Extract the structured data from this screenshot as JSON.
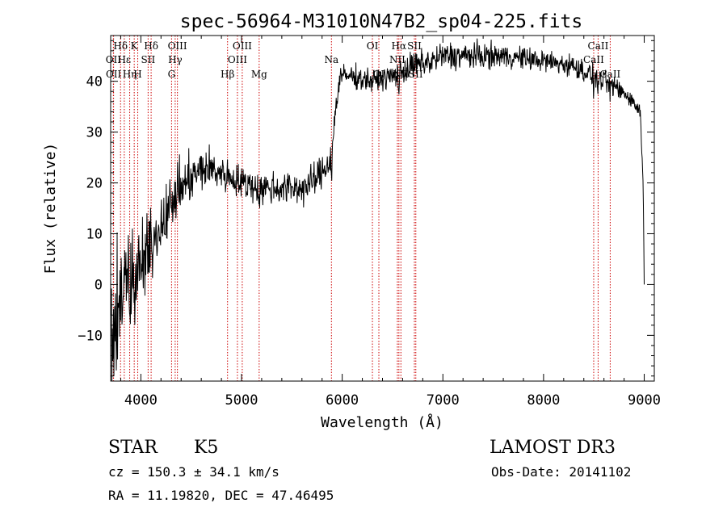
{
  "chart_data": {
    "type": "line",
    "title": "spec-56964-M31010N47B2_sp04-225.fits",
    "xlabel": "Wavelength (Å)",
    "ylabel": "Flux (relative)",
    "xlim": [
      3700,
      9100
    ],
    "ylim": [
      -19,
      49
    ],
    "xticks": [
      {
        "label": "4000",
        "value": 4000
      },
      {
        "label": "5000",
        "value": 5000
      },
      {
        "label": "6000",
        "value": 6000
      },
      {
        "label": "7000",
        "value": 7000
      },
      {
        "label": "8000",
        "value": 8000
      },
      {
        "label": "9000",
        "value": 9000
      }
    ],
    "yticks": [
      {
        "label": "−10",
        "value": -10
      },
      {
        "label": "0",
        "value": 0
      },
      {
        "label": "10",
        "value": 10
      },
      {
        "label": "20",
        "value": 20
      },
      {
        "label": "30",
        "value": 30
      },
      {
        "label": "40",
        "value": 40
      }
    ],
    "grid": false,
    "line_color": "#000000",
    "marker_line_color": "#cc0000",
    "lines": [
      {
        "label": "Hδ",
        "wavelength": 3798,
        "row": 0
      },
      {
        "label": "OII",
        "wavelength": 3727,
        "row": 1
      },
      {
        "label": "OII",
        "wavelength": 3729,
        "row": 2
      },
      {
        "label": "Hε",
        "wavelength": 3835,
        "row": 1
      },
      {
        "label": "Hη",
        "wavelength": 3889,
        "row": 2
      },
      {
        "label": "K",
        "wavelength": 3934,
        "row": 0
      },
      {
        "label": "H",
        "wavelength": 3969,
        "row": 2
      },
      {
        "label": "Hδ",
        "wavelength": 4102,
        "row": 0
      },
      {
        "label": "SII",
        "wavelength": 4072,
        "row": 1
      },
      {
        "label": "OIII",
        "wavelength": 4363,
        "row": 0
      },
      {
        "label": "Hγ",
        "wavelength": 4341,
        "row": 1
      },
      {
        "label": "G",
        "wavelength": 4305,
        "row": 2
      },
      {
        "label": "Hβ",
        "wavelength": 4861,
        "row": 2
      },
      {
        "label": "OIII",
        "wavelength": 4959,
        "row": 1
      },
      {
        "label": "OIII",
        "wavelength": 5007,
        "row": 0
      },
      {
        "label": "Mg",
        "wavelength": 5175,
        "row": 2
      },
      {
        "label": "Na",
        "wavelength": 5893,
        "row": 1
      },
      {
        "label": "OI",
        "wavelength": 6300,
        "row": 0
      },
      {
        "label": "OI",
        "wavelength": 6364,
        "row": 2
      },
      {
        "label": "Hα",
        "wavelength": 6563,
        "row": 0
      },
      {
        "label": "NII",
        "wavelength": 6548,
        "row": 1
      },
      {
        "label": "NII",
        "wavelength": 6583,
        "row": 2
      },
      {
        "label": "SII",
        "wavelength": 6717,
        "row": 0
      },
      {
        "label": "SII",
        "wavelength": 6731,
        "row": 2
      },
      {
        "label": "CaII",
        "wavelength": 8542,
        "row": 0
      },
      {
        "label": "CaII",
        "wavelength": 8498,
        "row": 1
      },
      {
        "label": "CaII",
        "wavelength": 8662,
        "row": 2
      }
    ],
    "spectrum_shape": [
      [
        3700,
        -10,
        14
      ],
      [
        3760,
        -5,
        12
      ],
      [
        3850,
        1,
        9
      ],
      [
        3950,
        2,
        8
      ],
      [
        4050,
        5,
        7
      ],
      [
        4150,
        10,
        5
      ],
      [
        4250,
        14,
        5
      ],
      [
        4350,
        18,
        5
      ],
      [
        4500,
        21,
        4
      ],
      [
        4650,
        23,
        4
      ],
      [
        4800,
        22,
        3
      ],
      [
        5000,
        20,
        3
      ],
      [
        5200,
        19,
        3
      ],
      [
        5400,
        19,
        3
      ],
      [
        5600,
        19,
        3
      ],
      [
        5700,
        20,
        3
      ],
      [
        5800,
        22,
        3
      ],
      [
        5860,
        24,
        3
      ],
      [
        5900,
        26,
        3
      ],
      [
        5930,
        34,
        2
      ],
      [
        5980,
        41,
        2
      ],
      [
        6100,
        41,
        2
      ],
      [
        6300,
        40,
        2
      ],
      [
        6500,
        41,
        2
      ],
      [
        6700,
        43,
        2.5
      ],
      [
        6900,
        44,
        2.5
      ],
      [
        7000,
        45,
        2.5
      ],
      [
        7300,
        45,
        2.5
      ],
      [
        7600,
        45,
        2
      ],
      [
        8000,
        44,
        2
      ],
      [
        8300,
        43,
        2
      ],
      [
        8500,
        41,
        2
      ],
      [
        8700,
        39,
        2
      ],
      [
        8850,
        37,
        1.5
      ],
      [
        8960,
        34,
        1.5
      ],
      [
        8990,
        20,
        0.5
      ],
      [
        9000,
        0,
        0
      ]
    ]
  },
  "info": {
    "object_class": "STAR",
    "subclass": "K5",
    "survey": "LAMOST DR3",
    "redshift": "cz =  150.3 ± 34.1 km/s",
    "obs_date": "Obs-Date: 20141102",
    "coords": "RA =   11.19820, DEC =   47.46495"
  }
}
